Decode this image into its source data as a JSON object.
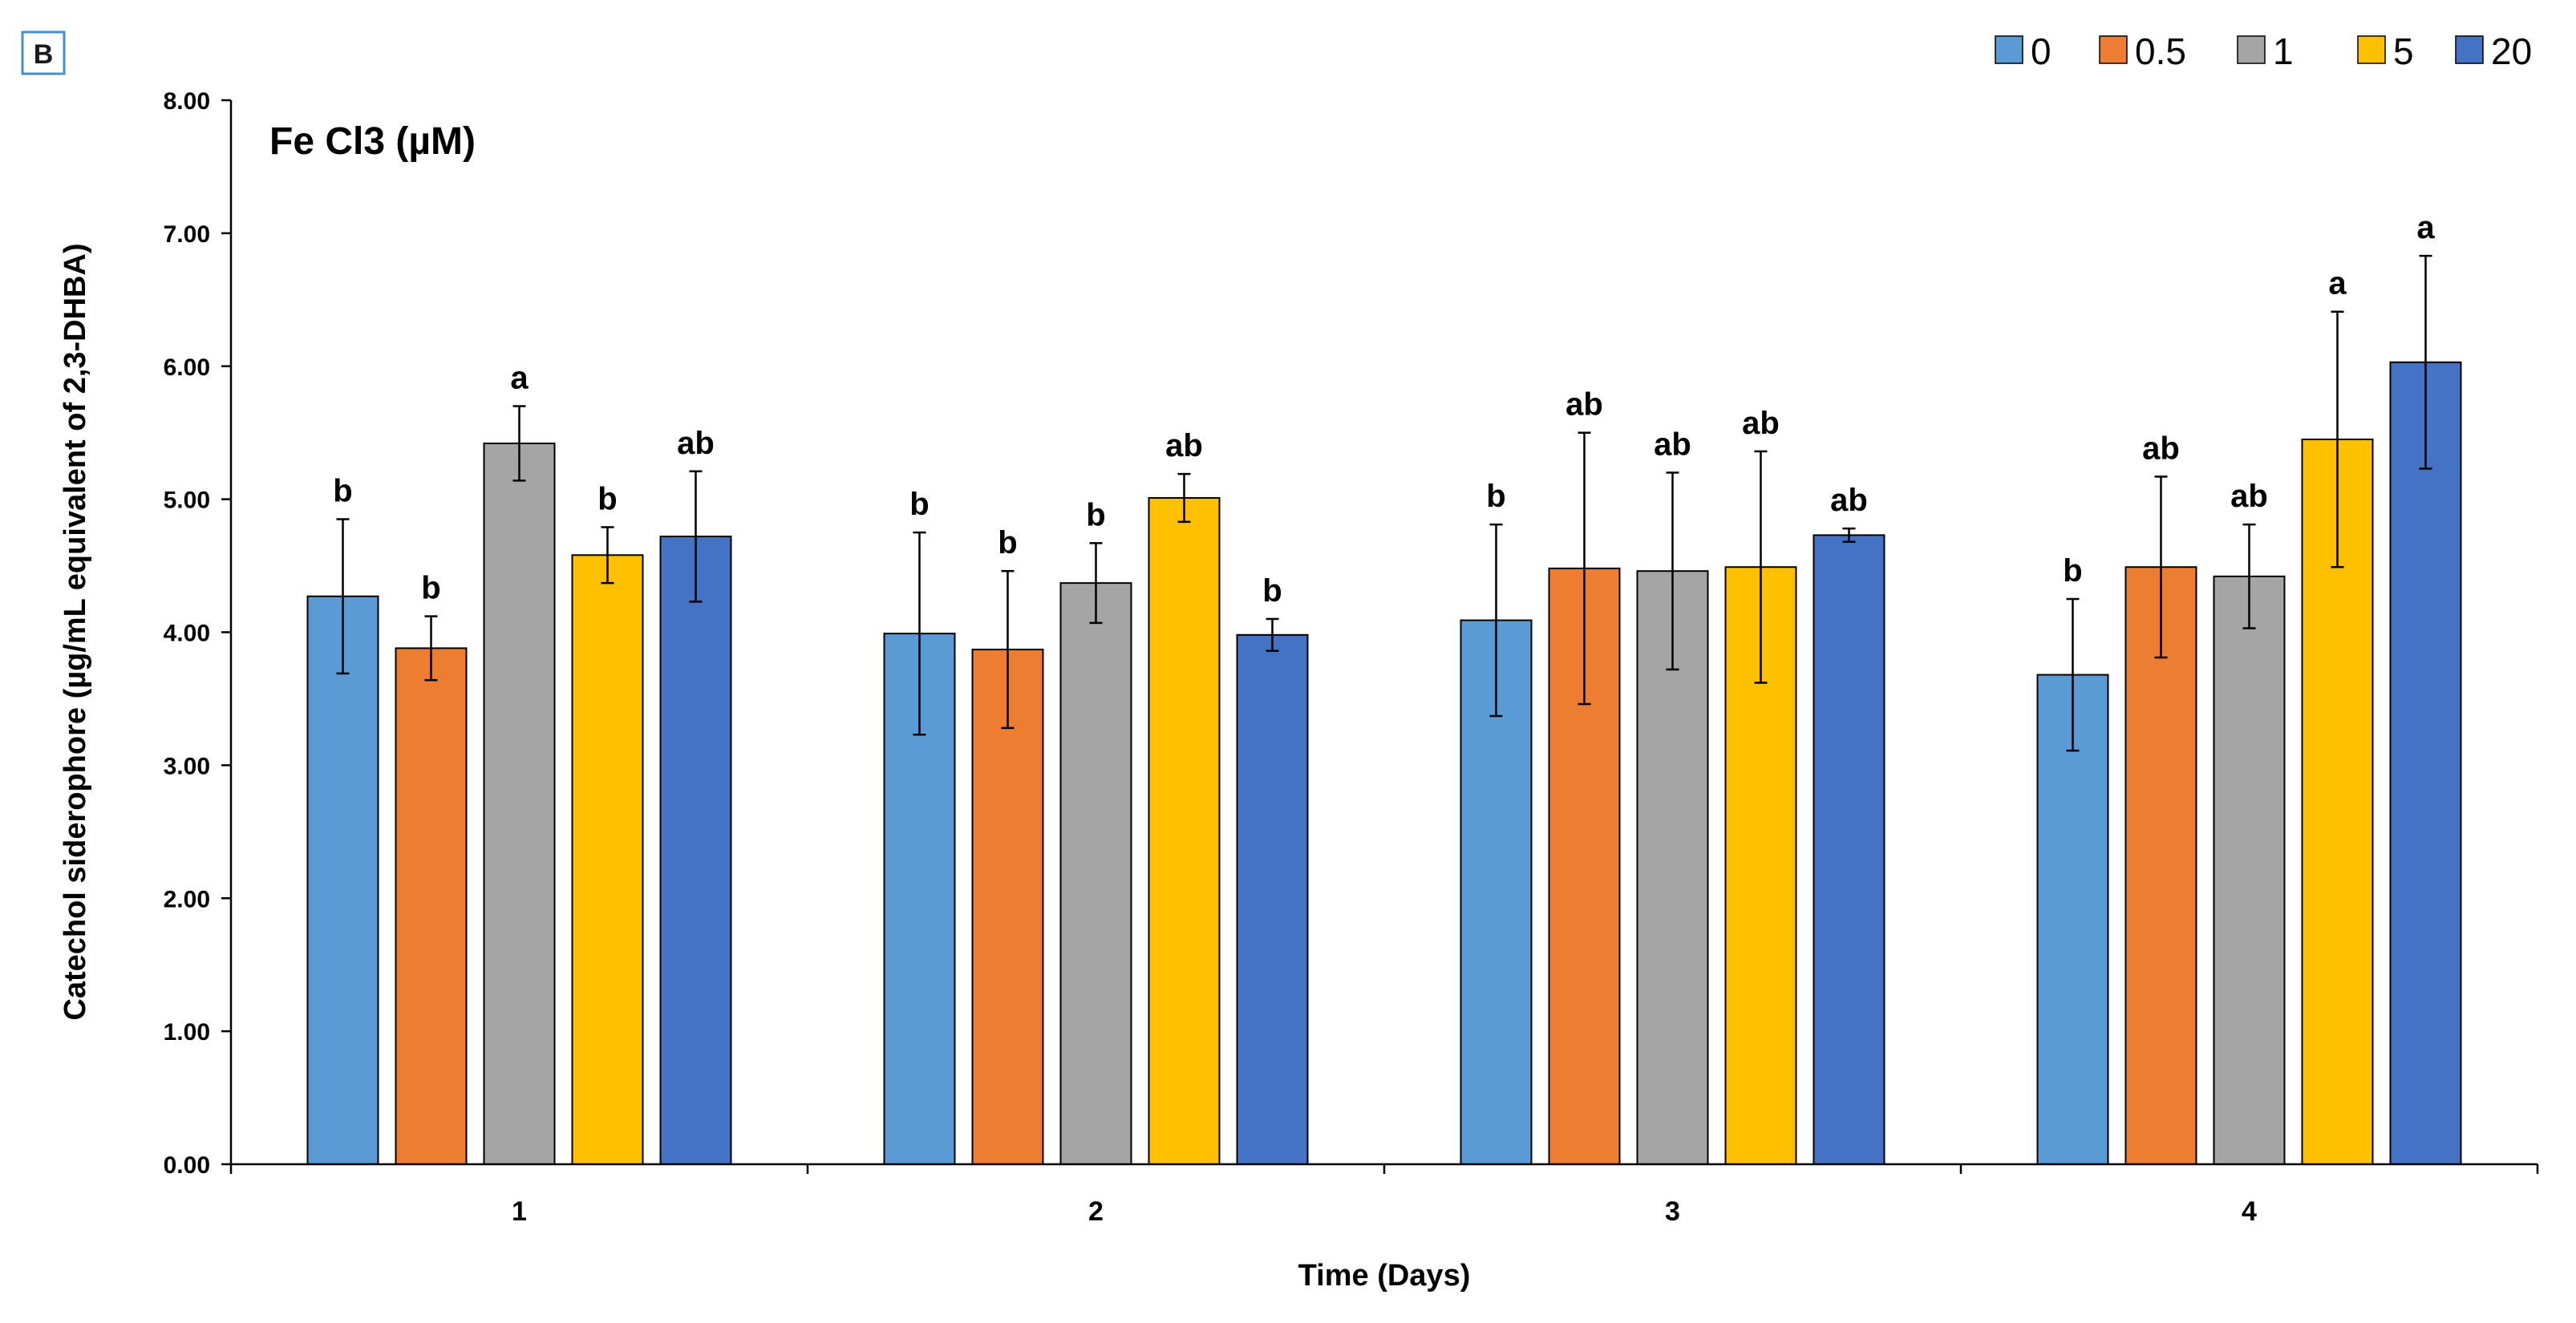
{
  "panel_label": "B",
  "chart_data": {
    "type": "bar",
    "title": "Fe Cl3 (µM)",
    "xlabel": "Time (Days)",
    "ylabel": "Catechol siderophore (µg/mL equivalent of 2,3-DHBA)",
    "ylim": [
      0,
      8
    ],
    "yticks": [
      "0.00",
      "1.00",
      "2.00",
      "3.00",
      "4.00",
      "5.00",
      "6.00",
      "7.00",
      "8.00"
    ],
    "categories": [
      "1",
      "2",
      "3",
      "4"
    ],
    "legend_position": "top-right",
    "series": [
      {
        "name": "0",
        "color": "#5B9BD5",
        "values": [
          4.27,
          3.99,
          4.09,
          3.68
        ],
        "errors": [
          0.58,
          0.76,
          0.72,
          0.57
        ],
        "letters": [
          "b",
          "b",
          "b",
          "b"
        ]
      },
      {
        "name": "0.5",
        "color": "#ED7D31",
        "values": [
          3.88,
          3.87,
          4.48,
          4.49
        ],
        "errors": [
          0.24,
          0.59,
          1.02,
          0.68
        ],
        "letters": [
          "b",
          "b",
          "ab",
          "ab"
        ]
      },
      {
        "name": "1",
        "color": "#A5A5A5",
        "values": [
          5.42,
          4.37,
          4.46,
          4.42
        ],
        "errors": [
          0.28,
          0.3,
          0.74,
          0.39
        ],
        "letters": [
          "a",
          "b",
          "ab",
          "ab"
        ]
      },
      {
        "name": "5",
        "color": "#FFC000",
        "values": [
          4.58,
          5.01,
          4.49,
          5.45
        ],
        "errors": [
          0.21,
          0.18,
          0.87,
          0.96
        ],
        "letters": [
          "b",
          "ab",
          "ab",
          "a"
        ]
      },
      {
        "name": "20",
        "color": "#4472C4",
        "values": [
          4.72,
          3.98,
          4.73,
          6.03
        ],
        "errors": [
          0.49,
          0.12,
          0.05,
          0.8
        ],
        "letters": [
          "ab",
          "b",
          "ab",
          "a"
        ]
      }
    ]
  }
}
